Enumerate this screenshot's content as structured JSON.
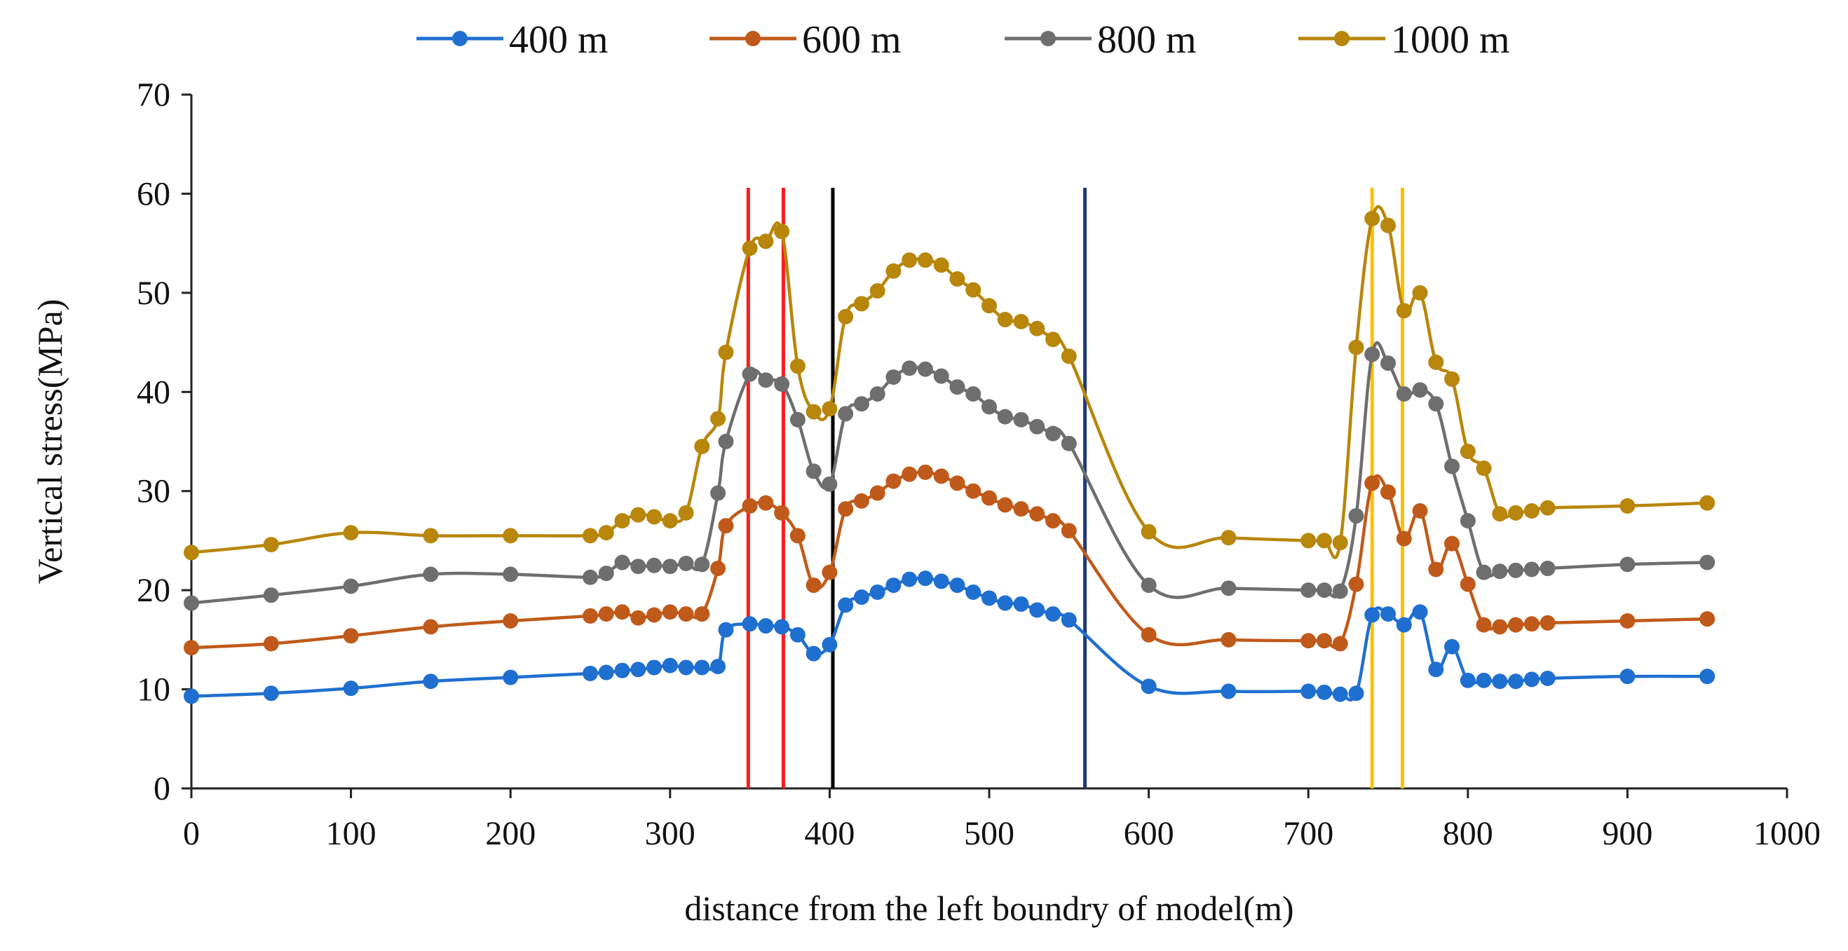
{
  "chart_data": {
    "type": "line",
    "title": "",
    "xlabel": "distance from the left boundry of model(m)",
    "ylabel": "Vertical stress(MPa)",
    "xlim": [
      0,
      1000
    ],
    "ylim": [
      0,
      70
    ],
    "xticks": [
      0,
      100,
      200,
      300,
      400,
      500,
      600,
      700,
      800,
      900,
      1000
    ],
    "yticks": [
      0,
      10,
      20,
      30,
      40,
      50,
      60,
      70
    ],
    "grid": false,
    "legend_position": "top",
    "series": [
      {
        "name": "400 m",
        "color": "#1F6FD0",
        "x": [
          0,
          50,
          100,
          150,
          200,
          250,
          260,
          270,
          280,
          290,
          300,
          310,
          320,
          330,
          335,
          350,
          360,
          370,
          380,
          390,
          400,
          410,
          420,
          430,
          440,
          450,
          460,
          470,
          480,
          490,
          500,
          510,
          520,
          530,
          540,
          550,
          600,
          650,
          700,
          710,
          720,
          730,
          740,
          750,
          760,
          770,
          780,
          790,
          800,
          810,
          820,
          830,
          840,
          850,
          900,
          950
        ],
        "y": [
          9.3,
          9.6,
          10.1,
          10.8,
          11.2,
          11.6,
          11.7,
          11.9,
          12.0,
          12.2,
          12.4,
          12.2,
          12.2,
          12.3,
          16.0,
          16.6,
          16.4,
          16.3,
          15.5,
          13.6,
          14.5,
          18.5,
          19.3,
          19.8,
          20.5,
          21.1,
          21.2,
          20.9,
          20.5,
          19.8,
          19.2,
          18.7,
          18.6,
          18.0,
          17.6,
          17.0,
          10.3,
          9.8,
          9.8,
          9.7,
          9.5,
          9.6,
          17.5,
          17.6,
          16.5,
          17.8,
          12.0,
          14.3,
          10.9,
          10.9,
          10.8,
          10.8,
          11.0,
          11.1,
          11.3,
          11.3
        ]
      },
      {
        "name": "600 m",
        "color": "#C05A1A",
        "x": [
          0,
          50,
          100,
          150,
          200,
          250,
          260,
          270,
          280,
          290,
          300,
          310,
          320,
          330,
          335,
          350,
          360,
          370,
          380,
          390,
          400,
          410,
          420,
          430,
          440,
          450,
          460,
          470,
          480,
          490,
          500,
          510,
          520,
          530,
          540,
          550,
          600,
          650,
          700,
          710,
          720,
          730,
          740,
          750,
          760,
          770,
          780,
          790,
          800,
          810,
          820,
          830,
          840,
          850,
          900,
          950
        ],
        "y": [
          14.2,
          14.6,
          15.4,
          16.3,
          16.9,
          17.4,
          17.6,
          17.8,
          17.2,
          17.5,
          17.8,
          17.6,
          17.6,
          22.2,
          26.5,
          28.5,
          28.8,
          27.8,
          25.5,
          20.5,
          21.8,
          28.2,
          29.0,
          29.8,
          31.0,
          31.7,
          31.9,
          31.5,
          30.8,
          30.0,
          29.3,
          28.6,
          28.2,
          27.7,
          27.0,
          26.0,
          15.5,
          15.0,
          14.9,
          14.9,
          14.6,
          20.6,
          30.8,
          29.9,
          25.2,
          28.0,
          22.1,
          24.7,
          20.6,
          16.5,
          16.3,
          16.5,
          16.6,
          16.7,
          16.9,
          17.1
        ]
      },
      {
        "name": "800 m",
        "color": "#6E6E6E",
        "x": [
          0,
          50,
          100,
          150,
          200,
          250,
          260,
          270,
          280,
          290,
          300,
          310,
          320,
          330,
          335,
          350,
          360,
          370,
          380,
          390,
          400,
          410,
          420,
          430,
          440,
          450,
          460,
          470,
          480,
          490,
          500,
          510,
          520,
          530,
          540,
          550,
          600,
          650,
          700,
          710,
          720,
          730,
          740,
          750,
          760,
          770,
          780,
          790,
          800,
          810,
          820,
          830,
          840,
          850,
          900,
          950
        ],
        "y": [
          18.7,
          19.5,
          20.4,
          21.6,
          21.6,
          21.3,
          21.7,
          22.8,
          22.4,
          22.5,
          22.4,
          22.7,
          22.6,
          29.8,
          35.0,
          41.8,
          41.2,
          40.8,
          37.2,
          32.0,
          30.7,
          37.8,
          38.8,
          39.8,
          41.5,
          42.4,
          42.3,
          41.6,
          40.5,
          39.8,
          38.5,
          37.5,
          37.2,
          36.5,
          35.8,
          34.8,
          20.5,
          20.2,
          20.0,
          20.0,
          19.9,
          27.5,
          43.8,
          42.9,
          39.8,
          40.2,
          38.8,
          32.5,
          27.0,
          21.8,
          21.9,
          22.0,
          22.1,
          22.2,
          22.6,
          22.8
        ]
      },
      {
        "name": "1000 m",
        "color": "#B8860B",
        "x": [
          0,
          50,
          100,
          150,
          200,
          250,
          260,
          270,
          280,
          290,
          300,
          310,
          320,
          330,
          335,
          350,
          360,
          370,
          380,
          390,
          400,
          410,
          420,
          430,
          440,
          450,
          460,
          470,
          480,
          490,
          500,
          510,
          520,
          530,
          540,
          550,
          600,
          650,
          700,
          710,
          720,
          730,
          740,
          750,
          760,
          770,
          780,
          790,
          800,
          810,
          820,
          830,
          840,
          850,
          900,
          950
        ],
        "y": [
          23.8,
          24.6,
          25.8,
          25.5,
          25.5,
          25.5,
          25.8,
          27.0,
          27.6,
          27.4,
          27.0,
          27.8,
          34.5,
          37.3,
          44.0,
          54.5,
          55.2,
          56.2,
          42.6,
          38.0,
          38.3,
          47.6,
          48.9,
          50.2,
          52.2,
          53.3,
          53.3,
          52.8,
          51.4,
          50.3,
          48.7,
          47.3,
          47.1,
          46.4,
          45.3,
          43.6,
          25.9,
          25.3,
          25.0,
          25.0,
          24.8,
          44.5,
          57.5,
          56.8,
          48.2,
          50.0,
          43.0,
          41.3,
          34.0,
          32.3,
          27.7,
          27.8,
          28.0,
          28.3,
          28.5,
          28.8
        ]
      }
    ],
    "reference_lines": [
      {
        "x": 349,
        "color": "#FF1A1A"
      },
      {
        "x": 371,
        "color": "#FF1A1A"
      },
      {
        "x": 402,
        "color": "#000000"
      },
      {
        "x": 560,
        "color": "#1F3A7A"
      },
      {
        "x": 740,
        "color": "#FFC000"
      },
      {
        "x": 759,
        "color": "#FFC000"
      }
    ]
  }
}
